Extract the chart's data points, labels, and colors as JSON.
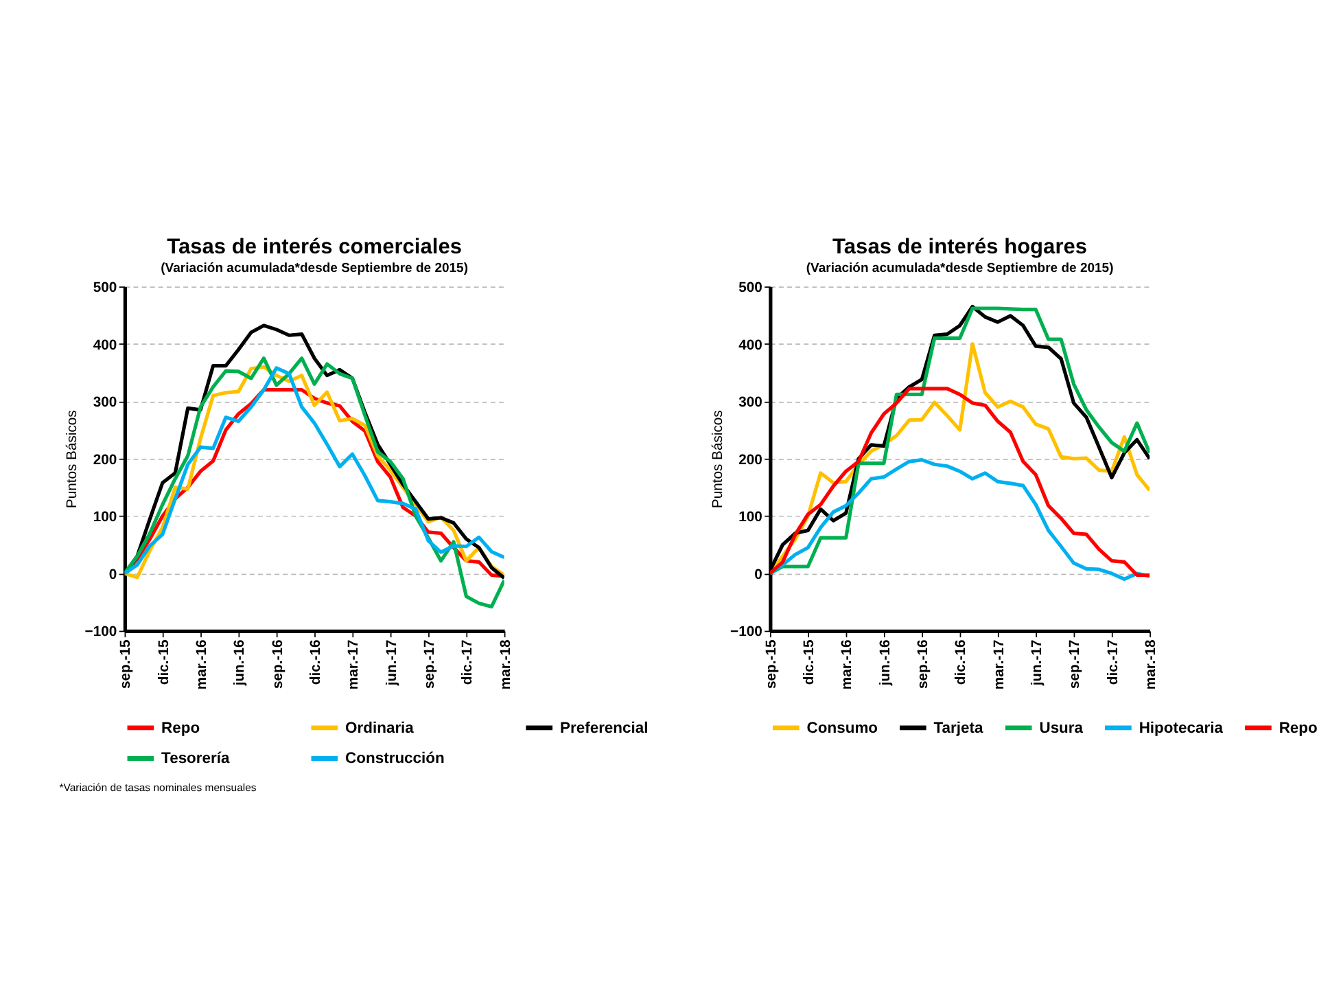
{
  "chart_data": [
    {
      "type": "line",
      "title": "Tasas de interés comerciales",
      "subtitle": "(Variación acumulada*desde Septiembre de 2015)",
      "ylabel": "Puntos Básicos",
      "categories": [
        "sep.-15",
        null,
        null,
        "dic.-15",
        null,
        null,
        "mar.-16",
        null,
        null,
        "jun.-16",
        null,
        null,
        "sep.-16",
        null,
        null,
        "dic.-16",
        null,
        null,
        "mar.-17",
        null,
        null,
        "jun.-17",
        null,
        null,
        "sep.-17",
        null,
        null,
        "dic.-17",
        null,
        null,
        "mar.-18"
      ],
      "ylim": [
        -100,
        500
      ],
      "yticks": [
        -100,
        0,
        100,
        200,
        300,
        400,
        500
      ],
      "grid": "y",
      "legend": "bottom",
      "annotations": [
        "*Variación de tasas nominales mensuales"
      ],
      "series": [
        {
          "name": "Repo",
          "color": "#ff0000",
          "values": [
            0,
            25,
            60,
            100,
            130,
            150,
            178,
            196,
            250,
            278,
            296,
            320,
            320,
            320,
            320,
            305,
            297,
            292,
            265,
            248,
            195,
            168,
            115,
            100,
            72,
            70,
            45,
            22,
            20,
            -3,
            -5
          ]
        },
        {
          "name": "Ordinaria",
          "color": "#ffc000",
          "values": [
            0,
            -7,
            40,
            80,
            150,
            147,
            235,
            310,
            315,
            317,
            357,
            360,
            345,
            335,
            345,
            293,
            316,
            266,
            270,
            258,
            205,
            180,
            150,
            120,
            90,
            98,
            75,
            22,
            45,
            12,
            -3
          ]
        },
        {
          "name": "Preferencial",
          "color": "#000000",
          "values": [
            0,
            30,
            95,
            158,
            175,
            288,
            285,
            362,
            362,
            390,
            420,
            432,
            425,
            415,
            417,
            375,
            345,
            355,
            340,
            280,
            225,
            190,
            155,
            125,
            95,
            97,
            88,
            60,
            45,
            10,
            -8
          ]
        },
        {
          "name": "Tesorería",
          "color": "#00b050",
          "values": [
            0,
            30,
            70,
            120,
            165,
            205,
            290,
            325,
            353,
            352,
            340,
            375,
            328,
            348,
            375,
            330,
            365,
            348,
            340,
            275,
            212,
            195,
            165,
            100,
            62,
            22,
            55,
            -40,
            -52,
            -58,
            -12
          ]
        },
        {
          "name": "Construcción",
          "color": "#00b0f0",
          "values": [
            0,
            15,
            48,
            68,
            130,
            190,
            220,
            218,
            272,
            265,
            290,
            320,
            358,
            348,
            290,
            262,
            225,
            186,
            208,
            170,
            127,
            125,
            122,
            112,
            57,
            37,
            48,
            47,
            63,
            38,
            28
          ]
        }
      ]
    },
    {
      "type": "line",
      "title": "Tasas de interés hogares",
      "subtitle": "(Variación acumulada*desde Septiembre de 2015)",
      "ylabel": "Puntos Básicos",
      "categories": [
        "sep.-15",
        null,
        null,
        "dic.-15",
        null,
        null,
        "mar.-16",
        null,
        null,
        "jun.-16",
        null,
        null,
        "sep.-16",
        null,
        null,
        "dic.-16",
        null,
        null,
        "mar.-17",
        null,
        null,
        "jun.-17",
        null,
        null,
        "sep.-17",
        null,
        null,
        "dic.-17",
        null,
        null,
        "mar.-18"
      ],
      "ylim": [
        -100,
        500
      ],
      "yticks": [
        -100,
        0,
        100,
        200,
        300,
        400,
        500
      ],
      "grid": "y",
      "legend": "bottom",
      "series": [
        {
          "name": "Consumo",
          "color": "#ffc000",
          "values": [
            0,
            30,
            60,
            100,
            175,
            158,
            160,
            190,
            213,
            225,
            240,
            267,
            268,
            298,
            275,
            250,
            400,
            315,
            290,
            300,
            290,
            260,
            252,
            203,
            200,
            201,
            180,
            178,
            238,
            172,
            145
          ]
        },
        {
          "name": "Tarjeta",
          "color": "#000000",
          "values": [
            5,
            50,
            70,
            75,
            112,
            92,
            105,
            200,
            224,
            222,
            305,
            325,
            338,
            415,
            417,
            432,
            465,
            447,
            438,
            449,
            432,
            396,
            394,
            374,
            297,
            272,
            220,
            167,
            210,
            233,
            200
          ]
        },
        {
          "name": "Usura",
          "color": "#00b050",
          "values": [
            0,
            12,
            12,
            12,
            62,
            62,
            62,
            192,
            192,
            192,
            312,
            312,
            312,
            410,
            410,
            410,
            462,
            462,
            462,
            461,
            460,
            460,
            408,
            408,
            330,
            285,
            255,
            228,
            213,
            262,
            210
          ]
        },
        {
          "name": "Hipotecaria",
          "color": "#00b0f0",
          "values": [
            0,
            15,
            33,
            45,
            80,
            107,
            118,
            140,
            165,
            168,
            182,
            195,
            198,
            190,
            187,
            178,
            165,
            175,
            160,
            157,
            153,
            120,
            75,
            47,
            18,
            8,
            7,
            0,
            -10,
            0,
            -5
          ]
        },
        {
          "name": "Repo",
          "color": "#ff0000",
          "values": [
            0,
            20,
            68,
            103,
            120,
            152,
            178,
            195,
            245,
            278,
            297,
            322,
            322,
            322,
            322,
            312,
            297,
            293,
            265,
            246,
            195,
            172,
            118,
            96,
            70,
            68,
            42,
            22,
            20,
            -3,
            -3
          ]
        }
      ]
    }
  ]
}
